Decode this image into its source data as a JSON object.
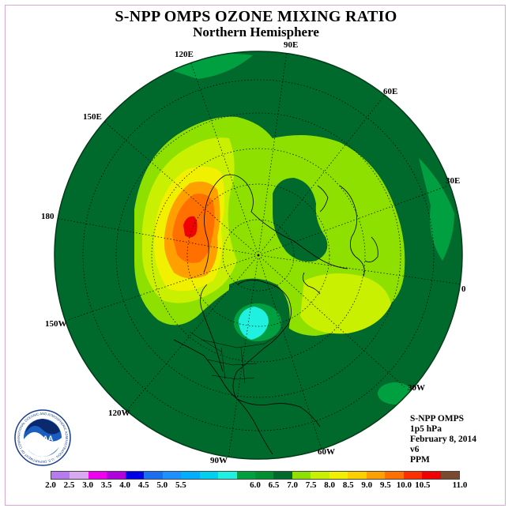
{
  "title": "S-NPP OMPS OZONE MIXING RATIO",
  "subtitle": "Northern Hemisphere",
  "longitudes": {
    "lon_90e": "90E",
    "lon_120e": "120E",
    "lon_60e": "60E",
    "lon_150e": "150E",
    "lon_30e": "30E",
    "lon_180": "180",
    "lon_0": "0",
    "lon_150w": "150W",
    "lon_30w": "30W",
    "lon_120w": "120W",
    "lon_60w": "60W",
    "lon_90w": "90W"
  },
  "info": {
    "instrument": "S-NPP OMPS",
    "level": "1p5 hPa",
    "date": "February 8, 2014",
    "version": "v6",
    "units": "PPM"
  },
  "logo": {
    "text": "NOAA",
    "ring_text": "NATIONAL OCEANIC AND ATMOSPHERIC ADMINISTRATION · U.S. DEPARTMENT OF COMMERCE"
  },
  "colorbar": {
    "colors": [
      "#b57bef",
      "#d8a8f0",
      "#f000f0",
      "#b000e0",
      "#0000e6",
      "#1a6ef0",
      "#1e90ff",
      "#00b0ff",
      "#00d0f0",
      "#20f0e0",
      "#00a040",
      "#009030",
      "#006a2c",
      "#8ee000",
      "#c8f000",
      "#f0f000",
      "#ffd000",
      "#ffa000",
      "#ff7000",
      "#ff3000",
      "#f00000",
      "#7a4a30"
    ],
    "labels": [
      "2.0",
      "2.5",
      "3.0",
      "3.5",
      "4.0",
      "4.5",
      "5.0",
      "5.5",
      "6.0",
      "6.5",
      "7.0",
      "7.5",
      "8.0",
      "8.5",
      "9.0",
      "9.5",
      "10.0",
      "10.5",
      "11.0"
    ]
  },
  "map_colors": {
    "dark_green": "#006a2c",
    "mid_green": "#00a040",
    "light_green": "#8ee000",
    "yellow_green": "#c8f000",
    "yellow": "#f0f000",
    "orange": "#ffa000",
    "deep_orange": "#ff7000",
    "red": "#f00000",
    "cyan": "#20f0e0"
  }
}
